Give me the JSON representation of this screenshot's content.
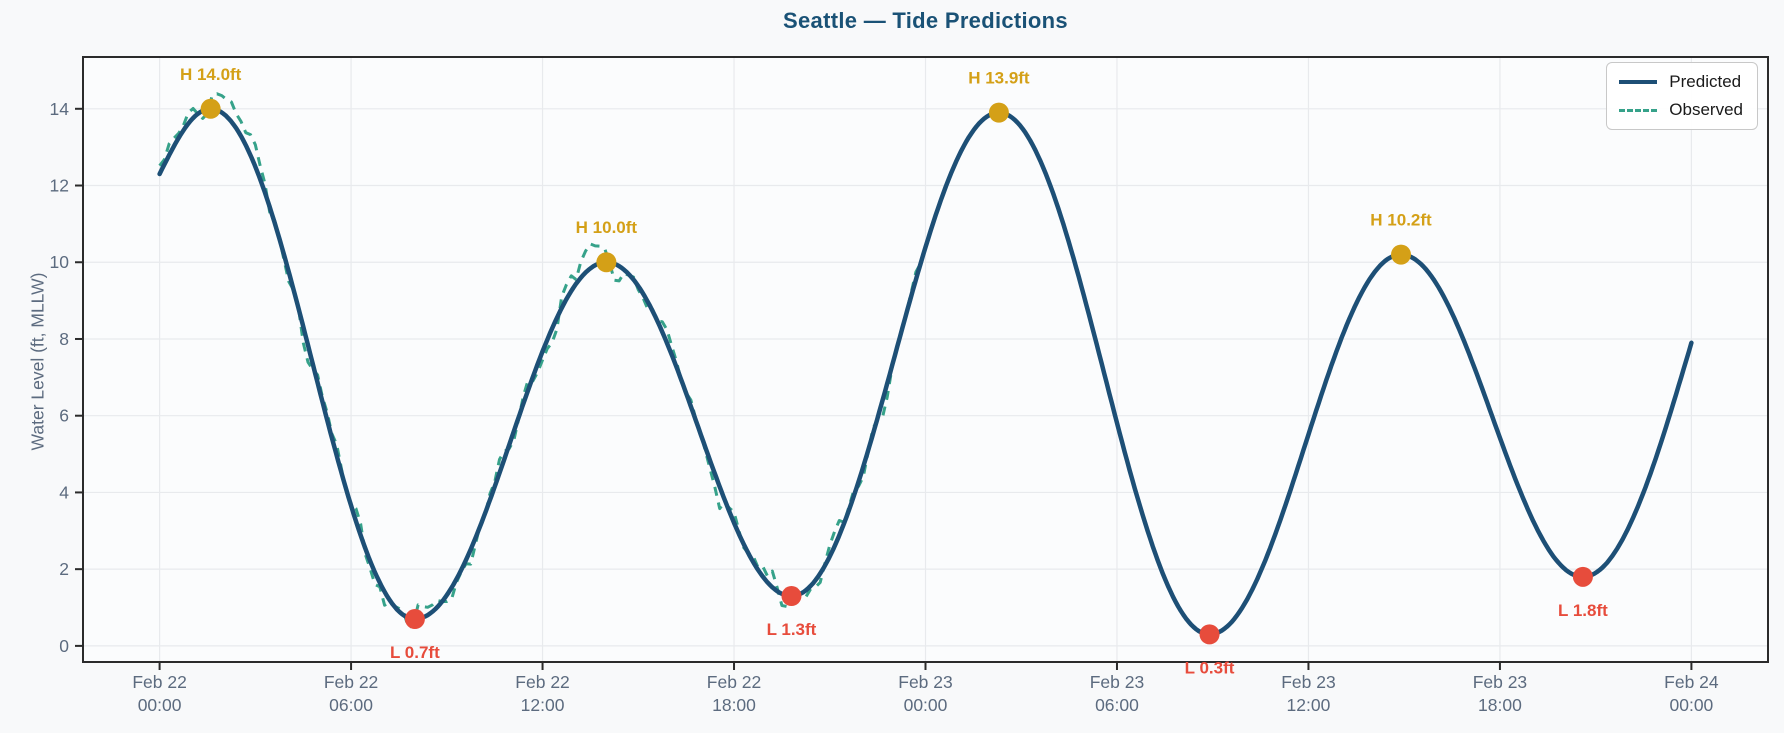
{
  "chart_data": {
    "type": "line",
    "title": "Seattle — Tide Predictions",
    "ylabel": "Water Level (ft, MLLW)",
    "x_unit_note": "hours after Feb 22 00:00",
    "xlim_hours": [
      -2.4,
      50.4
    ],
    "ylim_ft": [
      -0.42,
      15.35
    ],
    "grid": true,
    "legend_position": "upper right",
    "y_ticks": [
      0,
      2,
      4,
      6,
      8,
      10,
      12,
      14
    ],
    "x_ticks": [
      {
        "t": 0,
        "line1": "Feb 22",
        "line2": "00:00"
      },
      {
        "t": 6,
        "line1": "Feb 22",
        "line2": "06:00"
      },
      {
        "t": 12,
        "line1": "Feb 22",
        "line2": "12:00"
      },
      {
        "t": 18,
        "line1": "Feb 22",
        "line2": "18:00"
      },
      {
        "t": 24,
        "line1": "Feb 23",
        "line2": "00:00"
      },
      {
        "t": 30,
        "line1": "Feb 23",
        "line2": "06:00"
      },
      {
        "t": 36,
        "line1": "Feb 23",
        "line2": "12:00"
      },
      {
        "t": 42,
        "line1": "Feb 23",
        "line2": "18:00"
      },
      {
        "t": 48,
        "line1": "Feb 24",
        "line2": "00:00"
      }
    ],
    "series": [
      {
        "name": "Predicted",
        "style": "solid",
        "color": "#1d4f76",
        "knots": [
          {
            "t": 0,
            "v": 12.3,
            "kind": "start"
          },
          {
            "t": 1.6,
            "v": 14.0,
            "kind": "H",
            "label": "H 14.0ft"
          },
          {
            "t": 8.0,
            "v": 0.7,
            "kind": "L",
            "label": "L 0.7ft"
          },
          {
            "t": 14.0,
            "v": 10.0,
            "kind": "H",
            "label": "H 10.0ft"
          },
          {
            "t": 19.8,
            "v": 1.3,
            "kind": "L",
            "label": "L 1.3ft"
          },
          {
            "t": 26.3,
            "v": 13.9,
            "kind": "H",
            "label": "H 13.9ft"
          },
          {
            "t": 32.9,
            "v": 0.3,
            "kind": "L",
            "label": "L 0.3ft"
          },
          {
            "t": 38.9,
            "v": 10.2,
            "kind": "H",
            "label": "H 10.2ft"
          },
          {
            "t": 44.6,
            "v": 1.8,
            "kind": "L",
            "label": "L 1.8ft"
          },
          {
            "t": 48,
            "v": 7.9,
            "kind": "end"
          }
        ]
      },
      {
        "name": "Observed",
        "style": "dashed",
        "color": "#36a28a",
        "t_start": 0,
        "t_end": 23.85,
        "description": "noisy measurements tracking the predicted curve, overshooting the first high to about 14.5 ft; data stops near Feb 23 00:00"
      }
    ],
    "extremes": [
      {
        "kind": "H",
        "label": "H 14.0ft",
        "t": 1.6,
        "value": 14.0
      },
      {
        "kind": "L",
        "label": "L 0.7ft",
        "t": 8.0,
        "value": 0.7
      },
      {
        "kind": "H",
        "label": "H 10.0ft",
        "t": 14.0,
        "value": 10.0
      },
      {
        "kind": "L",
        "label": "L 1.3ft",
        "t": 19.8,
        "value": 1.3
      },
      {
        "kind": "H",
        "label": "H 13.9ft",
        "t": 26.3,
        "value": 13.9
      },
      {
        "kind": "L",
        "label": "L 0.3ft",
        "t": 32.9,
        "value": 0.3
      },
      {
        "kind": "H",
        "label": "H 10.2ft",
        "t": 38.9,
        "value": 10.2
      },
      {
        "kind": "L",
        "label": "L 1.8ft",
        "t": 44.6,
        "value": 1.8
      }
    ],
    "colors": {
      "title": "#1a5276",
      "predicted_line": "#1d4f76",
      "observed_line": "#36a28a",
      "high_marker": "#d4a017",
      "low_marker": "#e74c3c",
      "tick_text": "#5c6b7f",
      "spine": "#2b2b2b",
      "gridline": "#e8eaed",
      "axes_bg": "#fbfcfd",
      "figure_bg": "#f8f9fa"
    }
  }
}
